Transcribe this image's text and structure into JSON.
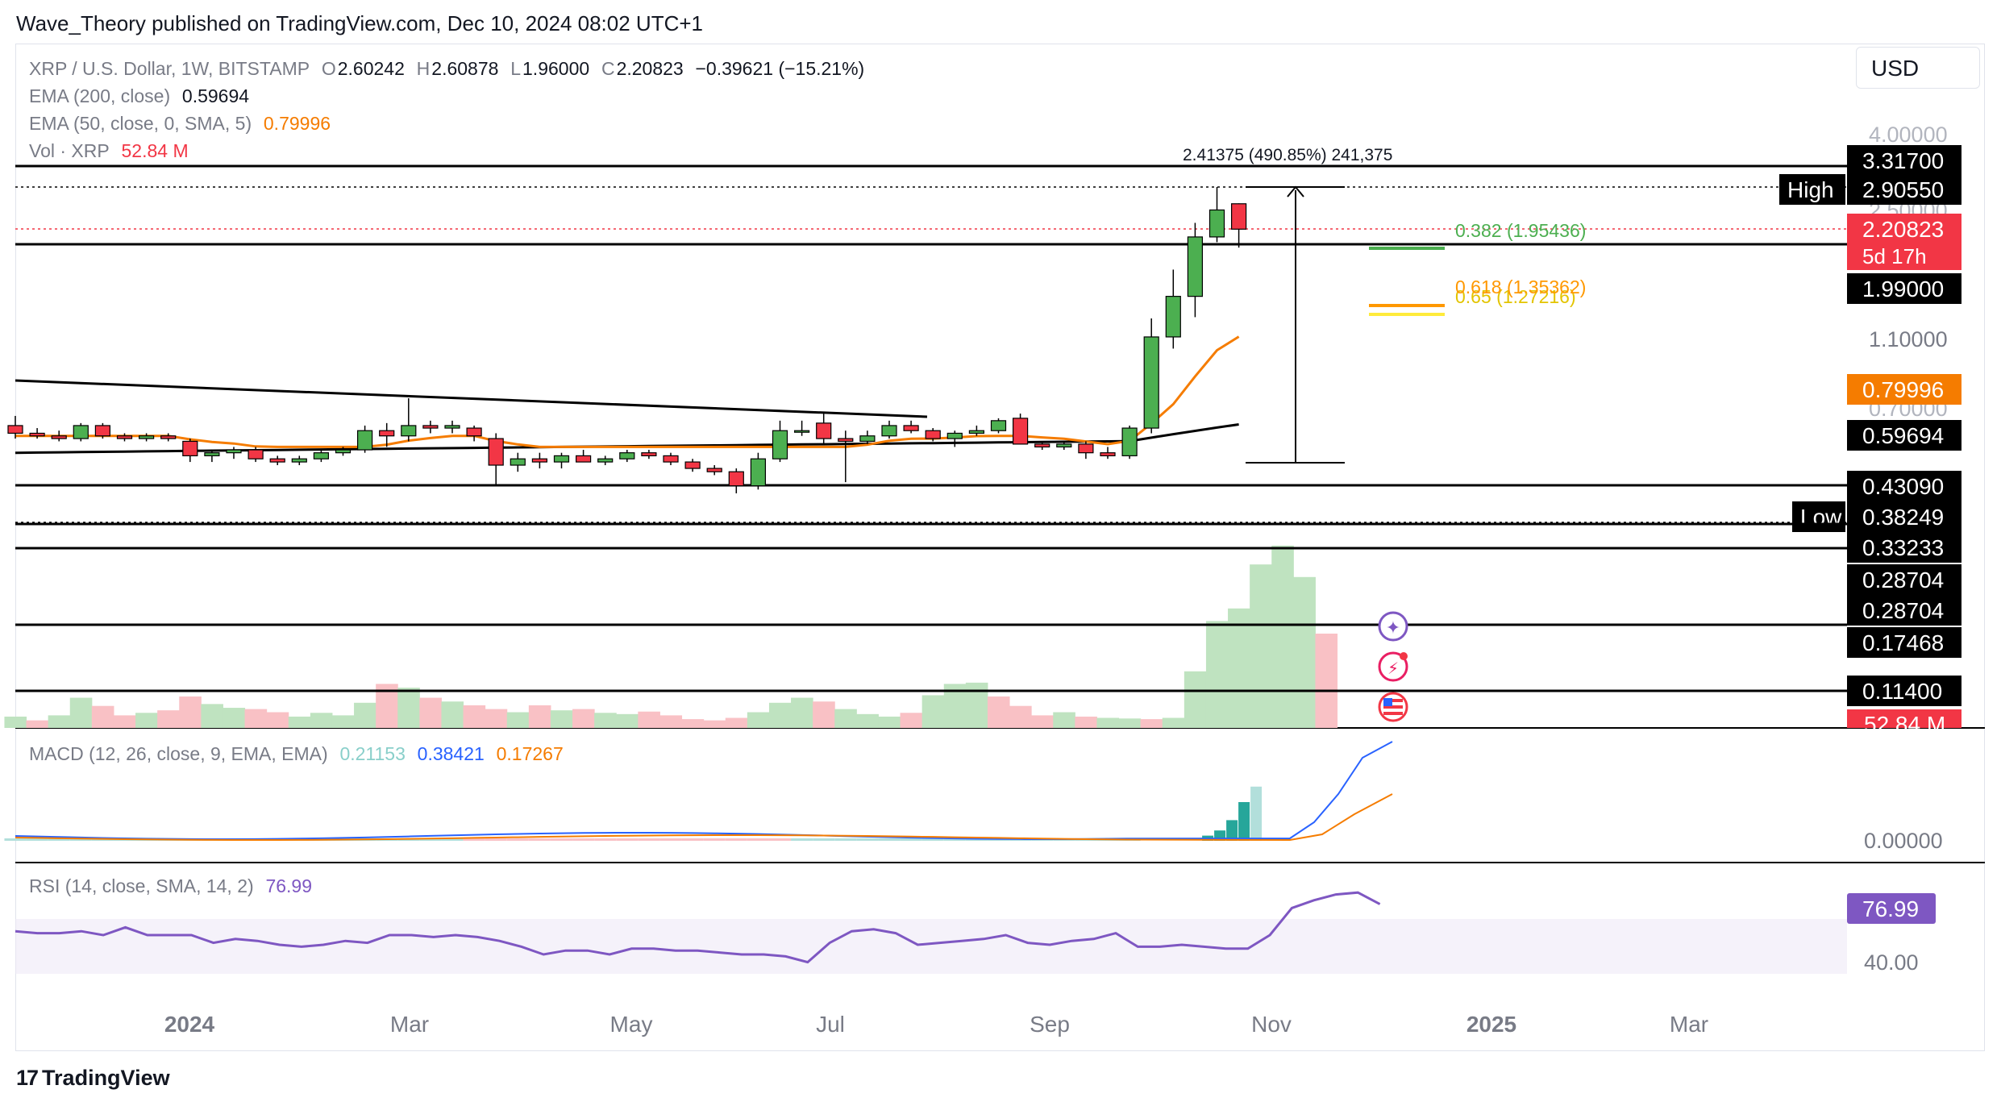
{
  "publisher_line": "Wave_Theory published on TradingView.com, Dec 10, 2024 08:02 UTC+1",
  "currency_button": "USD",
  "brand": "TradingView",
  "legend": {
    "symbol": "XRP / U.S. Dollar, 1W, BITSTAMP",
    "o_label": "O",
    "o_value": "2.60242",
    "h_label": "H",
    "h_value": "2.60878",
    "l_label": "L",
    "l_value": "1.96000",
    "c_label": "C",
    "c_value": "2.20823",
    "change": "−0.39621 (−15.21%)",
    "ema200_label": "EMA (200, close)",
    "ema200_value": "0.59694",
    "ema50_label": "EMA (50, close, 0, SMA, 5)",
    "ema50_value": "0.79996",
    "vol_label": "Vol · XRP",
    "vol_value": "52.84 M",
    "macd_label": "MACD (12, 26, close, 9, EMA, EMA)",
    "macd_hist": "0.21153",
    "macd_line": "0.38421",
    "macd_signal": "0.17267",
    "rsi_label": "RSI (14, close, SMA, 14, 2)",
    "rsi_value": "76.99"
  },
  "colors": {
    "up": "#4caf50",
    "down": "#f23645",
    "ema200": "#000000",
    "ema50": "#f57c00",
    "fib382": "#4caf50",
    "fib618": "#ff9800",
    "fib65": "#ffeb3b",
    "vol_up": "#bfe3c0",
    "vol_down": "#f9c1c5",
    "macd_line": "#2962ff",
    "macd_signal": "#f57c00",
    "macd_hist": "#26a69a",
    "rsi": "#7e57c2"
  },
  "chart_data": {
    "type": "candlestick",
    "timeframe": "1W",
    "x_ticks": [
      "2024",
      "Mar",
      "May",
      "Jul",
      "Sep",
      "Nov",
      "2025",
      "Mar"
    ],
    "price_axis_labels": [
      "4.00000",
      "2.50000",
      "1.10000",
      "0.70000"
    ],
    "candles": [
      {
        "o": 0.62,
        "h": 0.66,
        "l": 0.57,
        "c": 0.59
      },
      {
        "o": 0.59,
        "h": 0.61,
        "l": 0.57,
        "c": 0.58
      },
      {
        "o": 0.58,
        "h": 0.6,
        "l": 0.56,
        "c": 0.57
      },
      {
        "o": 0.57,
        "h": 0.63,
        "l": 0.56,
        "c": 0.62
      },
      {
        "o": 0.62,
        "h": 0.63,
        "l": 0.57,
        "c": 0.58
      },
      {
        "o": 0.58,
        "h": 0.59,
        "l": 0.56,
        "c": 0.57
      },
      {
        "o": 0.57,
        "h": 0.59,
        "l": 0.56,
        "c": 0.58
      },
      {
        "o": 0.58,
        "h": 0.59,
        "l": 0.56,
        "c": 0.57
      },
      {
        "o": 0.56,
        "h": 0.57,
        "l": 0.49,
        "c": 0.51
      },
      {
        "o": 0.51,
        "h": 0.53,
        "l": 0.49,
        "c": 0.52
      },
      {
        "o": 0.52,
        "h": 0.54,
        "l": 0.5,
        "c": 0.53
      },
      {
        "o": 0.53,
        "h": 0.54,
        "l": 0.49,
        "c": 0.5
      },
      {
        "o": 0.5,
        "h": 0.51,
        "l": 0.48,
        "c": 0.49
      },
      {
        "o": 0.49,
        "h": 0.51,
        "l": 0.48,
        "c": 0.5
      },
      {
        "o": 0.5,
        "h": 0.53,
        "l": 0.49,
        "c": 0.52
      },
      {
        "o": 0.52,
        "h": 0.54,
        "l": 0.51,
        "c": 0.53
      },
      {
        "o": 0.53,
        "h": 0.62,
        "l": 0.52,
        "c": 0.6
      },
      {
        "o": 0.6,
        "h": 0.63,
        "l": 0.54,
        "c": 0.58
      },
      {
        "o": 0.58,
        "h": 0.74,
        "l": 0.56,
        "c": 0.62
      },
      {
        "o": 0.62,
        "h": 0.64,
        "l": 0.59,
        "c": 0.61
      },
      {
        "o": 0.61,
        "h": 0.64,
        "l": 0.59,
        "c": 0.62
      },
      {
        "o": 0.61,
        "h": 0.62,
        "l": 0.56,
        "c": 0.58
      },
      {
        "o": 0.57,
        "h": 0.59,
        "l": 0.42,
        "c": 0.48
      },
      {
        "o": 0.48,
        "h": 0.52,
        "l": 0.46,
        "c": 0.5
      },
      {
        "o": 0.5,
        "h": 0.52,
        "l": 0.47,
        "c": 0.49
      },
      {
        "o": 0.49,
        "h": 0.52,
        "l": 0.47,
        "c": 0.51
      },
      {
        "o": 0.51,
        "h": 0.53,
        "l": 0.49,
        "c": 0.49
      },
      {
        "o": 0.49,
        "h": 0.51,
        "l": 0.48,
        "c": 0.5
      },
      {
        "o": 0.5,
        "h": 0.53,
        "l": 0.49,
        "c": 0.52
      },
      {
        "o": 0.52,
        "h": 0.53,
        "l": 0.5,
        "c": 0.51
      },
      {
        "o": 0.51,
        "h": 0.52,
        "l": 0.48,
        "c": 0.49
      },
      {
        "o": 0.49,
        "h": 0.5,
        "l": 0.46,
        "c": 0.47
      },
      {
        "o": 0.47,
        "h": 0.48,
        "l": 0.45,
        "c": 0.46
      },
      {
        "o": 0.46,
        "h": 0.47,
        "l": 0.4,
        "c": 0.42
      },
      {
        "o": 0.42,
        "h": 0.52,
        "l": 0.41,
        "c": 0.5
      },
      {
        "o": 0.5,
        "h": 0.64,
        "l": 0.49,
        "c": 0.6
      },
      {
        "o": 0.6,
        "h": 0.64,
        "l": 0.58,
        "c": 0.6
      },
      {
        "o": 0.63,
        "h": 0.67,
        "l": 0.55,
        "c": 0.57
      },
      {
        "o": 0.57,
        "h": 0.6,
        "l": 0.43,
        "c": 0.56
      },
      {
        "o": 0.56,
        "h": 0.6,
        "l": 0.55,
        "c": 0.58
      },
      {
        "o": 0.58,
        "h": 0.64,
        "l": 0.57,
        "c": 0.62
      },
      {
        "o": 0.62,
        "h": 0.64,
        "l": 0.59,
        "c": 0.6
      },
      {
        "o": 0.6,
        "h": 0.61,
        "l": 0.56,
        "c": 0.57
      },
      {
        "o": 0.57,
        "h": 0.6,
        "l": 0.54,
        "c": 0.59
      },
      {
        "o": 0.59,
        "h": 0.62,
        "l": 0.58,
        "c": 0.6
      },
      {
        "o": 0.6,
        "h": 0.65,
        "l": 0.59,
        "c": 0.64
      },
      {
        "o": 0.65,
        "h": 0.67,
        "l": 0.55,
        "c": 0.55
      },
      {
        "o": 0.55,
        "h": 0.56,
        "l": 0.53,
        "c": 0.54
      },
      {
        "o": 0.54,
        "h": 0.56,
        "l": 0.53,
        "c": 0.55
      },
      {
        "o": 0.55,
        "h": 0.56,
        "l": 0.5,
        "c": 0.52
      },
      {
        "o": 0.52,
        "h": 0.54,
        "l": 0.5,
        "c": 0.51
      },
      {
        "o": 0.51,
        "h": 0.62,
        "l": 0.5,
        "c": 0.61
      },
      {
        "o": 0.61,
        "h": 1.24,
        "l": 0.59,
        "c": 1.1
      },
      {
        "o": 1.1,
        "h": 1.7,
        "l": 1.02,
        "c": 1.43
      },
      {
        "o": 1.43,
        "h": 2.3,
        "l": 1.25,
        "c": 2.1
      },
      {
        "o": 2.1,
        "h": 2.9,
        "l": 2.03,
        "c": 2.5
      },
      {
        "o": 2.60242,
        "h": 2.60878,
        "l": 1.96,
        "c": 2.20823
      }
    ],
    "horizontal_levels": [
      {
        "value": "3.31700",
        "badge": "3.31700"
      },
      {
        "value": "2.90550",
        "badge": "2.90550",
        "tag": "High"
      },
      {
        "value": "2.20823",
        "badge": "2.20823",
        "sub": "5d 17h"
      },
      {
        "value": "1.99000",
        "badge": "1.99000"
      },
      {
        "value": "0.79996",
        "badge": "0.79996"
      },
      {
        "value": "0.59694",
        "badge": "0.59694"
      },
      {
        "value": "0.43090",
        "badge": "0.43090"
      },
      {
        "value": "0.38249",
        "badge": "0.38249",
        "tag": "Low"
      },
      {
        "value": "0.33233",
        "badge": "0.33233"
      },
      {
        "value": "0.28704",
        "badge": "0.28704"
      },
      {
        "value": "0.28704",
        "badge": "0.28704"
      },
      {
        "value": "0.17468",
        "badge": "0.17468"
      },
      {
        "value": "0.11400",
        "badge": "0.11400"
      }
    ],
    "fib_levels": [
      {
        "ratio": "0.382",
        "label": "0.382 (1.95436)"
      },
      {
        "ratio": "0.618",
        "label": "0.618 (1.35362)"
      },
      {
        "ratio": "0.65",
        "label": "0.65 (1.27216)"
      }
    ],
    "measure_label": "2.41375 (490.85%) 241,375",
    "volume_badge": "52.84 M",
    "volume": [
      18,
      12,
      20,
      48,
      35,
      20,
      24,
      28,
      50,
      38,
      32,
      30,
      25,
      18,
      24,
      20,
      40,
      70,
      64,
      48,
      42,
      36,
      30,
      25,
      36,
      28,
      30,
      24,
      22,
      26,
      20,
      14,
      12,
      16,
      25,
      40,
      48,
      42,
      30,
      22,
      18,
      24,
      52,
      70,
      72,
      50,
      35,
      20,
      25,
      18,
      16,
      15,
      14,
      16,
      90,
      170,
      190,
      260,
      290,
      240,
      150
    ],
    "volume_up": [
      true,
      false,
      true,
      true,
      false,
      false,
      true,
      false,
      false,
      true,
      true,
      false,
      false,
      true,
      true,
      true,
      true,
      false,
      true,
      false,
      true,
      false,
      false,
      true,
      false,
      true,
      false,
      true,
      true,
      false,
      false,
      false,
      false,
      false,
      true,
      true,
      true,
      false,
      true,
      true,
      true,
      false,
      true,
      true,
      true,
      false,
      false,
      false,
      true,
      false,
      true,
      true,
      false,
      true,
      true,
      true,
      true,
      true,
      true,
      true,
      false
    ],
    "macd_axis_label": "0.00000",
    "macd_hist_values": [
      0.0,
      0.0,
      0.0,
      0.0,
      0.0,
      0.0,
      0.02,
      0.04,
      0.08,
      0.15,
      0.21
    ],
    "rsi_axis_label": "40.00",
    "rsi_values": [
      52,
      51,
      51,
      52,
      50,
      54,
      50,
      50,
      50,
      46,
      48,
      47,
      45,
      44,
      45,
      47,
      46,
      50,
      50,
      49,
      50,
      49,
      47,
      44,
      40,
      42,
      42,
      40,
      43,
      43,
      42,
      42,
      41,
      40,
      40,
      39,
      36,
      46,
      52,
      53,
      51,
      45,
      46,
      47,
      48,
      50,
      46,
      45,
      47,
      48,
      51,
      44,
      44,
      45,
      44,
      43,
      43,
      50,
      64,
      68,
      71,
      72,
      66
    ]
  }
}
